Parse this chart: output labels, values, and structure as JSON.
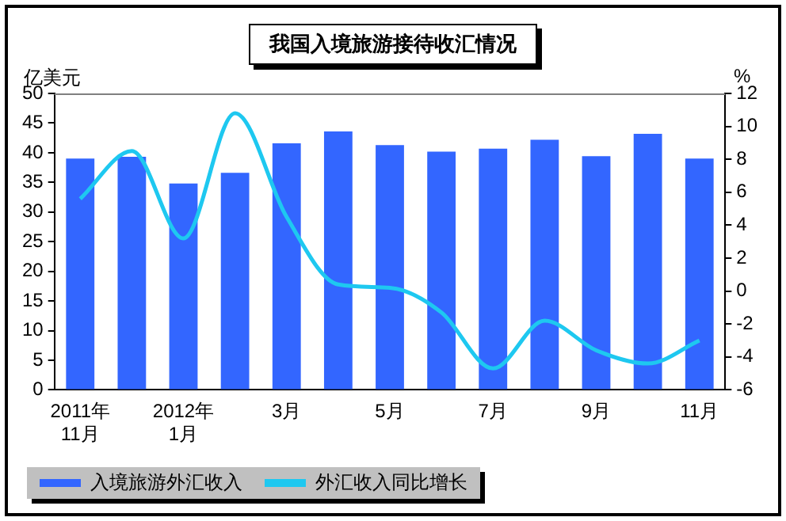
{
  "chart_data": {
    "type": "bar",
    "title": "我国入境旅游接待收汇情况",
    "ylabel": "亿美元",
    "y2label": "%",
    "categories": [
      "2011年\n11月",
      null,
      "2012年\n1月",
      null,
      "3月",
      null,
      "5月",
      null,
      "7月",
      null,
      "9月",
      null,
      "11月"
    ],
    "series": [
      {
        "name": "入境旅游外汇收入",
        "color": "#3366ff",
        "values": [
          39,
          39.3,
          34.8,
          36.6,
          41.6,
          43.6,
          41.3,
          40.2,
          40.7,
          42.2,
          39.4,
          43.2,
          39.0
        ]
      },
      {
        "name": "外汇收入同比增长",
        "type": "line",
        "axis": "y2",
        "color": "#1ec8f0",
        "values": [
          5.6,
          8.5,
          3.2,
          10.8,
          4.5,
          0.4,
          0.2,
          -1.3,
          -4.7,
          -1.8,
          -3.6,
          -4.4,
          -3.0
        ]
      }
    ],
    "ylim": [
      0,
      50
    ],
    "yticks": [
      0,
      5,
      10,
      15,
      20,
      25,
      30,
      35,
      40,
      45,
      50
    ],
    "y2lim": [
      -6,
      12
    ],
    "y2ticks": [
      -6,
      -4,
      -2,
      0,
      2,
      4,
      6,
      8,
      10,
      12
    ],
    "grid": false,
    "legend": "bottom left",
    "marker": "none"
  }
}
